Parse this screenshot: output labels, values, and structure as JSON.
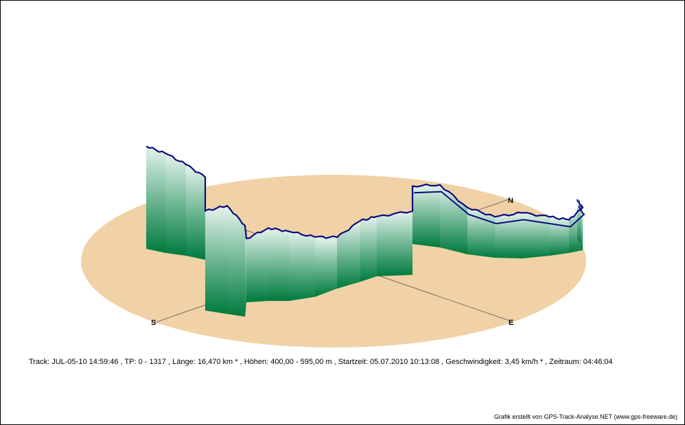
{
  "chart_data": {
    "type": "area",
    "chart_kind": "3D elevation profile (perspective curtain)",
    "colors": {
      "ground": "#f0d2a6",
      "track_line": "#0a0a80",
      "curtain_top": "#e6f4ee",
      "curtain_bottom": "#007a3d",
      "axis_line": "#555555"
    },
    "compass": {
      "north": "N",
      "east": "E",
      "south": "S"
    },
    "series": [
      {
        "values": [
          580,
          575,
          560,
          545,
          575,
          590,
          560,
          512,
          528,
          522,
          505,
          490,
          507,
          505,
          512,
          502,
          510,
          482,
          472,
          480,
          468,
          458,
          475,
          468,
          470
        ]
      }
    ],
    "ylim": [
      400,
      595
    ]
  },
  "info": {
    "track": "Track: JUL-05-10 14:59:46",
    "tp": "TP: 0 - 1317",
    "laenge": "Länge: 16,470 km *",
    "hoehen": "Höhen: 400,00 - 595,00 m",
    "startzeit": "Startzeit: 05.07.2010 10:13:08",
    "geschwindigkeit": "Geschwindigkeit: 3,45 km/h *",
    "zeitraum": "Zeitraum: 04:46:04",
    "separator": "  ,  "
  },
  "credit": "Grafik erstellt von GPS-Track-Analyse.NET (www.gps-freeware.de)"
}
